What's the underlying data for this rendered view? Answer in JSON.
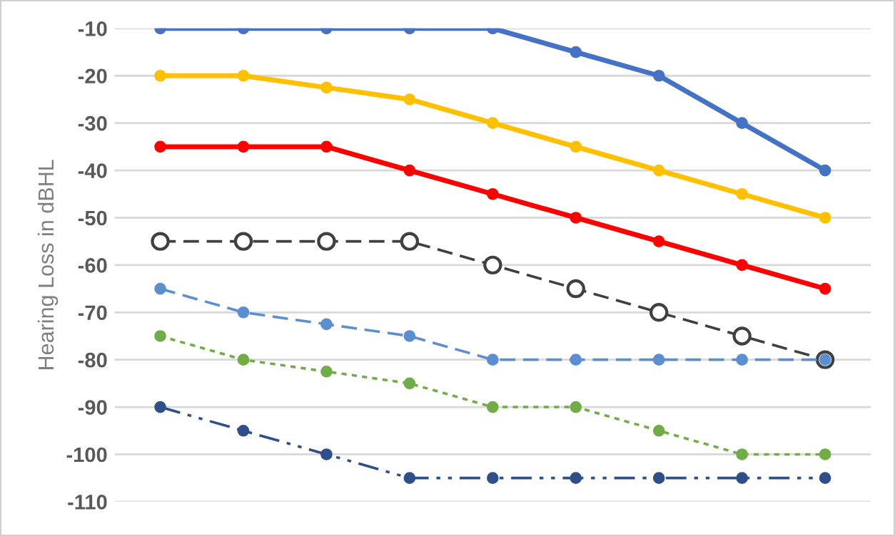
{
  "chart_data": {
    "type": "line",
    "ylabel": "Hearing Loss in dBHL",
    "categories": [
      null,
      null,
      null,
      null,
      null,
      null,
      null,
      null,
      null
    ],
    "ylim": [
      -110,
      -10
    ],
    "yticks": [
      -10,
      -20,
      -30,
      -40,
      -50,
      -60,
      -70,
      -80,
      -90,
      -100,
      -110
    ],
    "grid": "y",
    "marker": "circle",
    "series": [
      {
        "color": "#4472c4",
        "line_style": "solid",
        "values": [
          -10,
          -10,
          -10,
          -10,
          -10,
          -15,
          -20,
          -30,
          -40
        ]
      },
      {
        "color": "#ffc000",
        "line_style": "solid",
        "values": [
          -20,
          -20,
          -22.5,
          -25,
          -30,
          -35,
          -40,
          -45,
          -50
        ]
      },
      {
        "color": "#ff0000",
        "line_style": "solid",
        "values": [
          -35,
          -35,
          -35,
          -40,
          -45,
          -50,
          -55,
          -60,
          -65
        ]
      },
      {
        "color": "#404040",
        "line_style": "dashed",
        "values": [
          -55,
          -55,
          -55,
          -55,
          -60,
          -65,
          -70,
          -75,
          -80
        ]
      },
      {
        "color": "#5b8fd0",
        "line_style": "dashed",
        "values": [
          -65,
          -70,
          -72.5,
          -75,
          -80,
          -80,
          -80,
          -80,
          -80
        ]
      },
      {
        "color": "#70ad47",
        "line_style": "dotted",
        "values": [
          -75,
          -80,
          -82.5,
          -85,
          -90,
          -90,
          -95,
          -100,
          -100
        ]
      },
      {
        "color": "#2f4f8a",
        "line_style": "dashdot",
        "values": [
          -90,
          -95,
          -100,
          -105,
          -105,
          -105,
          -105,
          -105,
          -105
        ]
      }
    ]
  }
}
